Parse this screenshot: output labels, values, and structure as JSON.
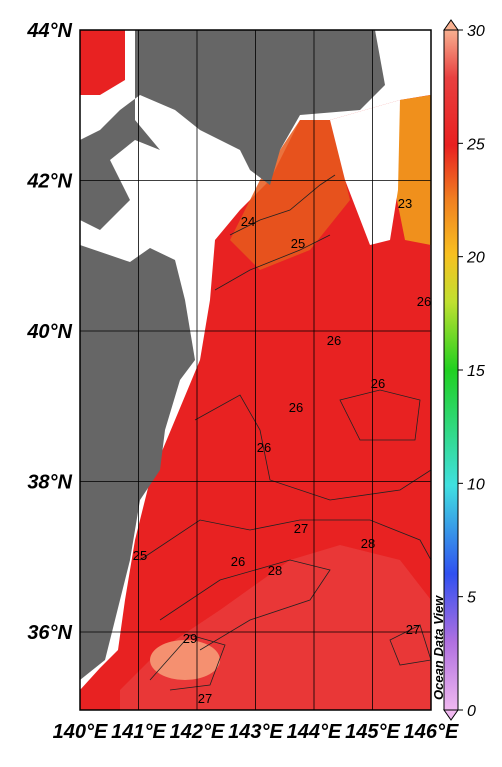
{
  "map": {
    "lat_ticks": [
      {
        "value": 44,
        "label": "44°N"
      },
      {
        "value": 42,
        "label": "42°N"
      },
      {
        "value": 40,
        "label": "40°N"
      },
      {
        "value": 38,
        "label": "38°N"
      },
      {
        "value": 36,
        "label": "36°N"
      }
    ],
    "lon_ticks": [
      {
        "value": 140,
        "label": "140°E"
      },
      {
        "value": 141,
        "label": "141°E"
      },
      {
        "value": 142,
        "label": "142°E"
      },
      {
        "value": 143,
        "label": "143°E"
      },
      {
        "value": 144,
        "label": "144°E"
      },
      {
        "value": 145,
        "label": "145°E"
      },
      {
        "value": 146,
        "label": "146°E"
      }
    ],
    "contour_labels": [
      "24",
      "25",
      "26",
      "26",
      "26",
      "26",
      "26",
      "27",
      "28",
      "28",
      "29",
      "27",
      "25",
      "23",
      "26",
      "27"
    ],
    "watermark": "Ocean Data View"
  },
  "colorbar": {
    "range": [
      0,
      30
    ],
    "ticks": [
      0,
      5,
      10,
      15,
      20,
      25,
      30
    ]
  }
}
